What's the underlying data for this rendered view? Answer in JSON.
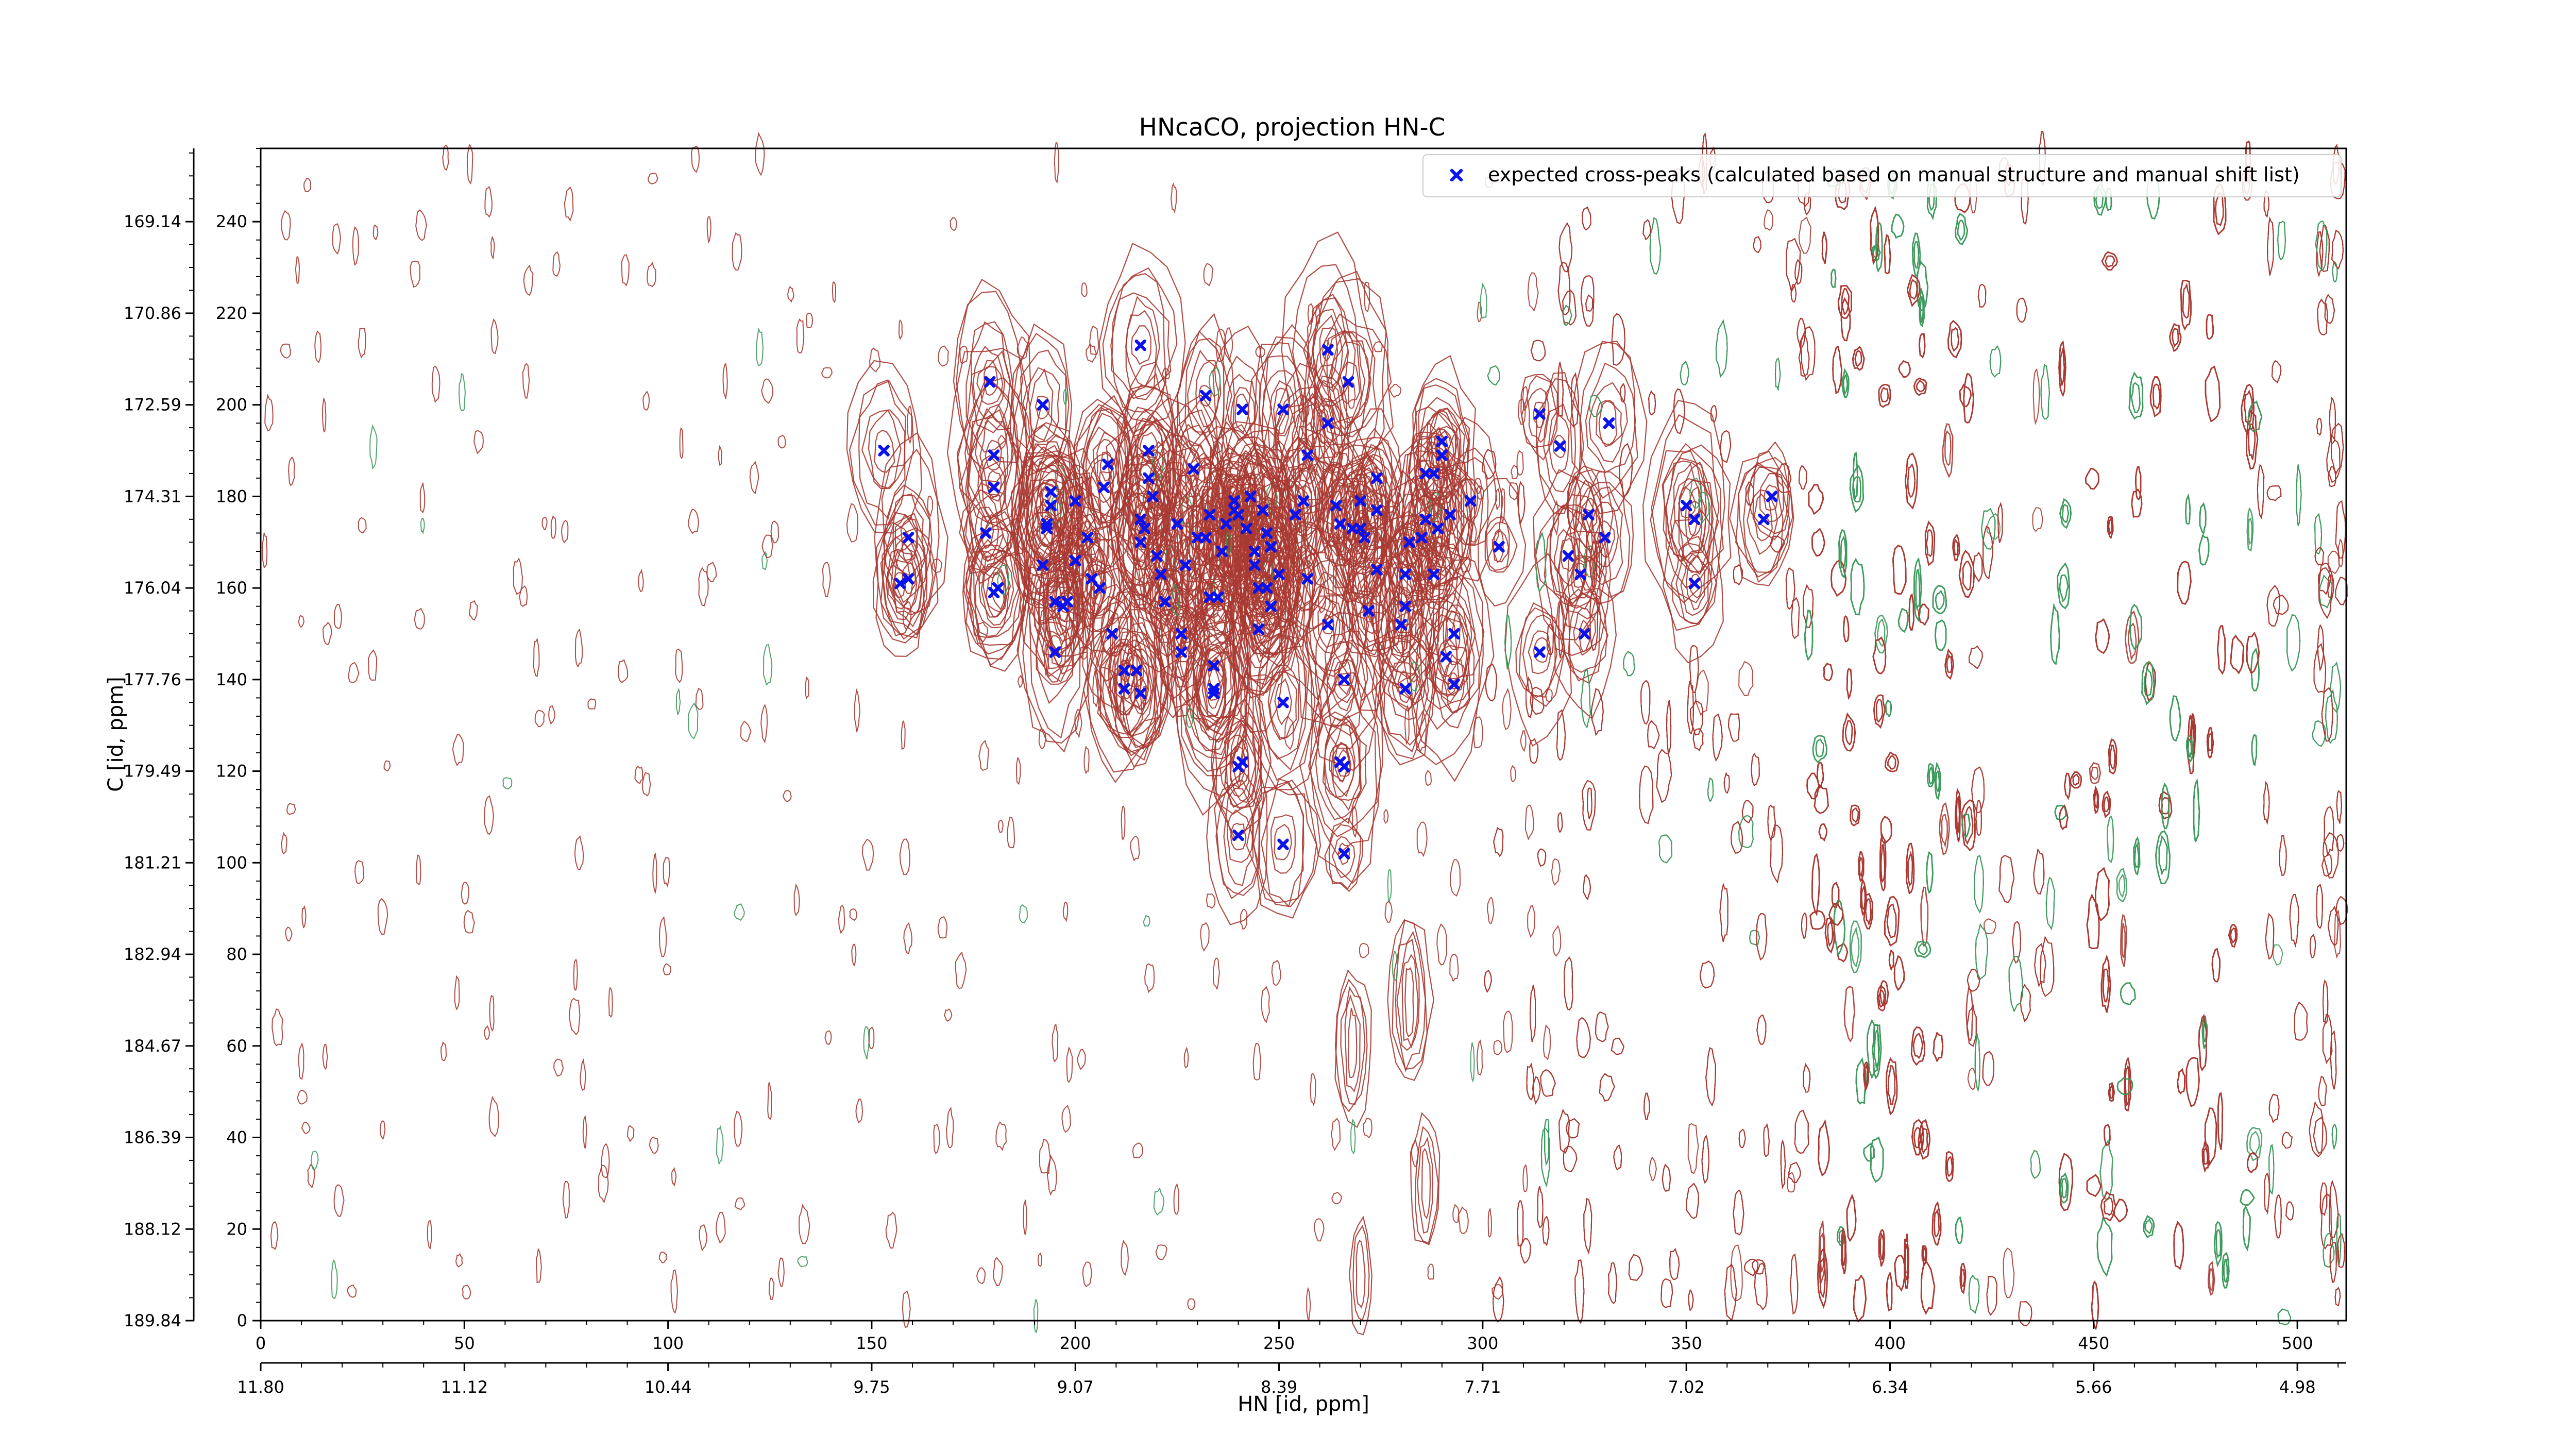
{
  "chart_data": {
    "type": "scatter",
    "title": "HNcaCO, projection HN-C",
    "xlabel": "HN [id, ppm]",
    "ylabel": "C [id, ppm]",
    "xlim": [
      0,
      512
    ],
    "ylim": [
      0,
      256
    ],
    "x_ticks": [
      0,
      50,
      100,
      150,
      200,
      250,
      300,
      350,
      400,
      450,
      500
    ],
    "y_ticks": [
      0,
      20,
      40,
      60,
      80,
      100,
      120,
      140,
      160,
      180,
      200,
      220,
      240
    ],
    "x_ppm_labels": [
      "11.80",
      "11.12",
      "10.44",
      "9.75",
      "9.07",
      "8.39",
      "7.71",
      "7.02",
      "6.34",
      "5.66",
      "4.98"
    ],
    "y_ppm_labels": [
      "189.84",
      "188.12",
      "186.39",
      "184.67",
      "182.94",
      "181.21",
      "179.49",
      "177.76",
      "176.04",
      "174.31",
      "172.59",
      "170.86",
      "169.14"
    ],
    "legend_position": "top-right",
    "grid": false,
    "colors": {
      "positive_contour": "#a83a32",
      "negative_contour": "#3f9a5e",
      "peak": "#0a12ee"
    },
    "series": [
      {
        "name": "expected cross-peaks (calculated based on manual structure and manual shift list)",
        "marker": "x",
        "points": [
          [
            153,
            190
          ],
          [
            157,
            161
          ],
          [
            159,
            162
          ],
          [
            159,
            171
          ],
          [
            179,
            205
          ],
          [
            180,
            189
          ],
          [
            180,
            182
          ],
          [
            178,
            172
          ],
          [
            181,
            160
          ],
          [
            180,
            159
          ],
          [
            192,
            200
          ],
          [
            194,
            181
          ],
          [
            194,
            178
          ],
          [
            193,
            174
          ],
          [
            193,
            173
          ],
          [
            195,
            157
          ],
          [
            195,
            146
          ],
          [
            192,
            165
          ],
          [
            198,
            157
          ],
          [
            197,
            156
          ],
          [
            200,
            166
          ],
          [
            200,
            179
          ],
          [
            203,
            171
          ],
          [
            204,
            162
          ],
          [
            206,
            160
          ],
          [
            207,
            182
          ],
          [
            208,
            187
          ],
          [
            209,
            150
          ],
          [
            212,
            142
          ],
          [
            212,
            138
          ],
          [
            215,
            142
          ],
          [
            216,
            137
          ],
          [
            216,
            175
          ],
          [
            217,
            173
          ],
          [
            216,
            170
          ],
          [
            216,
            213
          ],
          [
            218,
            190
          ],
          [
            218,
            184
          ],
          [
            219,
            180
          ],
          [
            220,
            167
          ],
          [
            221,
            163
          ],
          [
            222,
            157
          ],
          [
            225,
            174
          ],
          [
            226,
            150
          ],
          [
            226,
            146
          ],
          [
            227,
            165
          ],
          [
            229,
            186
          ],
          [
            230,
            171
          ],
          [
            233,
            158
          ],
          [
            232,
            202
          ],
          [
            232,
            171
          ],
          [
            233,
            176
          ],
          [
            234,
            137
          ],
          [
            234,
            143
          ],
          [
            234,
            138
          ],
          [
            235,
            158
          ],
          [
            236,
            168
          ],
          [
            237,
            174
          ],
          [
            239,
            177
          ],
          [
            239,
            179
          ],
          [
            240,
            176
          ],
          [
            240,
            121
          ],
          [
            240,
            106
          ],
          [
            241,
            122
          ],
          [
            241,
            199
          ],
          [
            242,
            173
          ],
          [
            243,
            180
          ],
          [
            244,
            168
          ],
          [
            244,
            165
          ],
          [
            245,
            160
          ],
          [
            245,
            151
          ],
          [
            246,
            177
          ],
          [
            247,
            172
          ],
          [
            247,
            160
          ],
          [
            248,
            169
          ],
          [
            248,
            156
          ],
          [
            250,
            163
          ],
          [
            251,
            135
          ],
          [
            251,
            104
          ],
          [
            251,
            199
          ],
          [
            254,
            176
          ],
          [
            256,
            179
          ],
          [
            257,
            162
          ],
          [
            257,
            189
          ],
          [
            262,
            152
          ],
          [
            262,
            196
          ],
          [
            262,
            212
          ],
          [
            264,
            178
          ],
          [
            266,
            140
          ],
          [
            265,
            122
          ],
          [
            266,
            121
          ],
          [
            267,
            205
          ],
          [
            266,
            102
          ],
          [
            265,
            174
          ],
          [
            268,
            173
          ],
          [
            270,
            173
          ],
          [
            270,
            179
          ],
          [
            271,
            171
          ],
          [
            272,
            155
          ],
          [
            274,
            164
          ],
          [
            274,
            177
          ],
          [
            274,
            184
          ],
          [
            280,
            152
          ],
          [
            281,
            163
          ],
          [
            281,
            156
          ],
          [
            281,
            138
          ],
          [
            282,
            170
          ],
          [
            285,
            171
          ],
          [
            286,
            185
          ],
          [
            288,
            185
          ],
          [
            286,
            175
          ],
          [
            288,
            163
          ],
          [
            289,
            173
          ],
          [
            290,
            192
          ],
          [
            290,
            189
          ],
          [
            291,
            145
          ],
          [
            292,
            176
          ],
          [
            293,
            150
          ],
          [
            293,
            139
          ],
          [
            297,
            179
          ],
          [
            304,
            169
          ],
          [
            314,
            198
          ],
          [
            314,
            146
          ],
          [
            319,
            191
          ],
          [
            321,
            167
          ],
          [
            324,
            163
          ],
          [
            325,
            150
          ],
          [
            326,
            176
          ],
          [
            330,
            171
          ],
          [
            331,
            196
          ],
          [
            350,
            178
          ],
          [
            352,
            175
          ],
          [
            352,
            161
          ],
          [
            369,
            175
          ],
          [
            371,
            180
          ]
        ]
      }
    ]
  }
}
